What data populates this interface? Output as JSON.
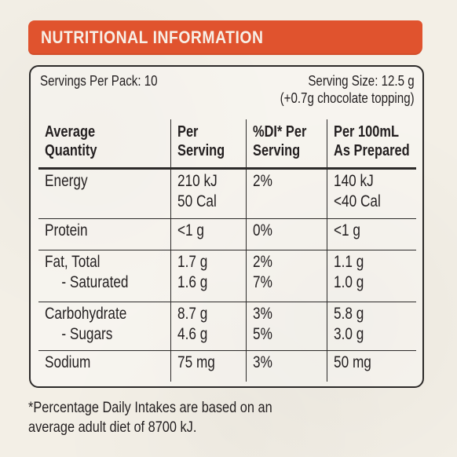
{
  "banner": {
    "title": "NUTRITIONAL INFORMATION",
    "color": "#e0532e"
  },
  "panel": {
    "servings_per_pack": "Servings Per Pack: 10",
    "serving_size_line1": "Serving Size: 12.5 g",
    "serving_size_line2": "(+0.7g chocolate topping)"
  },
  "table": {
    "headers": [
      [
        "Average",
        "Quantity"
      ],
      [
        "Per",
        "Serving"
      ],
      [
        "%DI* Per",
        "Serving"
      ],
      [
        "Per 100mL",
        "As Prepared"
      ]
    ],
    "rows": [
      {
        "quantity": [
          "Energy"
        ],
        "per_serving": [
          "210 kJ",
          "50 Cal"
        ],
        "di_per_serving": [
          "2%"
        ],
        "per_100ml": [
          "140 kJ",
          "<40 Cal"
        ]
      },
      {
        "quantity": [
          "Protein"
        ],
        "per_serving": [
          "<1 g"
        ],
        "di_per_serving": [
          "0%"
        ],
        "per_100ml": [
          "<1 g"
        ]
      },
      {
        "quantity": [
          "Fat, Total",
          "- Saturated"
        ],
        "per_serving": [
          "1.7 g",
          "1.6 g"
        ],
        "di_per_serving": [
          "2%",
          "7%"
        ],
        "per_100ml": [
          "1.1 g",
          "1.0 g"
        ]
      },
      {
        "quantity": [
          "Carbohydrate",
          "- Sugars"
        ],
        "per_serving": [
          "8.7 g",
          "4.6 g"
        ],
        "di_per_serving": [
          "3%",
          "5%"
        ],
        "per_100ml": [
          "5.8 g",
          "3.0 g"
        ]
      },
      {
        "quantity": [
          "Sodium"
        ],
        "per_serving": [
          "75 mg"
        ],
        "di_per_serving": [
          "3%"
        ],
        "per_100ml": [
          "50 mg"
        ]
      }
    ]
  },
  "footnote": {
    "line1": "*Percentage Daily Intakes are based on an",
    "line2": "average adult diet of 8700 kJ."
  }
}
